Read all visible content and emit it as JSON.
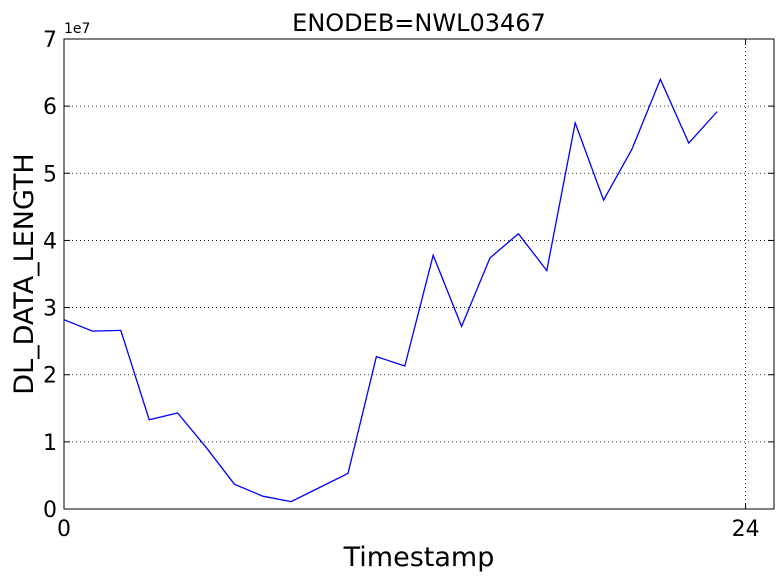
{
  "chart_data": {
    "type": "line",
    "title": "ENODEB=NWL03467",
    "xlabel": "Timestamp",
    "ylabel": "DL_DATA_LENGTH",
    "y_scale_label": "1e7",
    "y_scale": 10000000,
    "xlim": [
      0,
      25
    ],
    "ylim": [
      0,
      7
    ],
    "x_ticks": [
      0,
      24
    ],
    "x_tick_labels": [
      "0",
      "24"
    ],
    "y_ticks": [
      0,
      1,
      2,
      3,
      4,
      5,
      6,
      7
    ],
    "y_tick_labels": [
      "0",
      "1",
      "2",
      "3",
      "4",
      "5",
      "6",
      "7"
    ],
    "grid": true,
    "line_color": "#0000ff",
    "series": [
      {
        "x": [
          0,
          1,
          2,
          3,
          4,
          5,
          6,
          7,
          8,
          9,
          10,
          11,
          12,
          13,
          14,
          15,
          16,
          17,
          18,
          19,
          20,
          21,
          22,
          23
        ],
        "values": [
          2.82,
          2.65,
          2.66,
          1.33,
          1.43,
          0.92,
          0.37,
          0.19,
          0.11,
          0.32,
          0.53,
          2.27,
          2.13,
          3.78,
          2.72,
          3.74,
          4.1,
          3.55,
          5.75,
          4.6,
          5.36,
          6.4,
          5.45,
          5.92
        ]
      }
    ]
  }
}
